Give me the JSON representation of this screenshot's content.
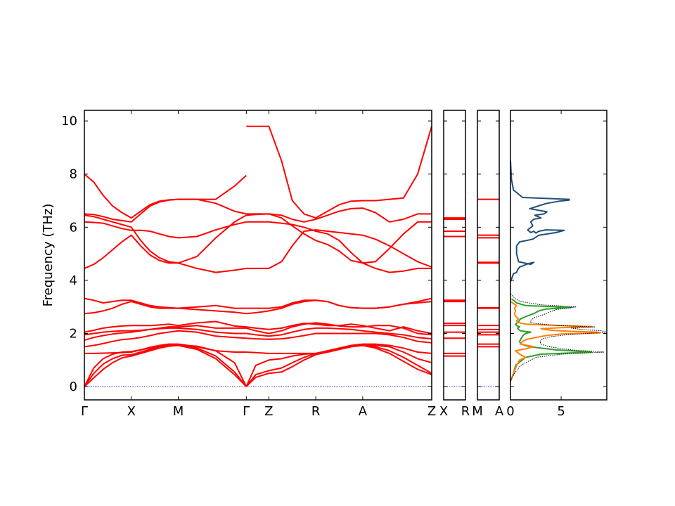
{
  "chart_data": {
    "type": "line",
    "ylabel": "Frequency (THz)",
    "ylim": [
      -0.5,
      10.4
    ],
    "yticks": [
      0,
      2,
      4,
      6,
      8,
      10
    ],
    "band_color": "#ff0000",
    "zero_line_color": "#0000cc",
    "panels": [
      {
        "name": "main",
        "x_range": [
          0,
          7.4
        ],
        "ticks": [
          {
            "x": 0,
            "label": "Γ"
          },
          {
            "x": 1.0,
            "label": "X"
          },
          {
            "x": 2.0,
            "label": "M"
          },
          {
            "x": 3.45,
            "label": "Γ"
          },
          {
            "x": 3.93,
            "label": "Z"
          },
          {
            "x": 4.93,
            "label": "R"
          },
          {
            "x": 5.93,
            "label": "A"
          },
          {
            "x": 7.4,
            "label": "Z"
          }
        ],
        "segments": [
          {
            "x_start": 0,
            "x_end": 3.45,
            "x": [
              0,
              0.2,
              0.4,
              0.6,
              0.8,
              1.0,
              1.2,
              1.4,
              1.6,
              1.8,
              2.0,
              2.4,
              2.8,
              3.2,
              3.45
            ],
            "bands": [
              [
                0,
                0.33,
                0.65,
                0.9,
                1.08,
                1.15,
                1.25,
                1.35,
                1.45,
                1.52,
                1.55,
                1.4,
                1.05,
                0.45,
                0
              ],
              [
                0,
                0.5,
                0.85,
                1.05,
                1.18,
                1.2,
                1.3,
                1.4,
                1.5,
                1.55,
                1.55,
                1.45,
                1.15,
                0.55,
                0
              ],
              [
                0,
                0.7,
                1.05,
                1.22,
                1.3,
                1.32,
                1.38,
                1.45,
                1.52,
                1.55,
                1.57,
                1.52,
                1.35,
                0.9,
                0
              ],
              [
                1.25,
                1.25,
                1.26,
                1.27,
                1.28,
                1.3,
                1.38,
                1.48,
                1.55,
                1.6,
                1.6,
                1.5,
                1.35,
                1.3,
                1.3
              ],
              [
                1.5,
                1.55,
                1.62,
                1.7,
                1.77,
                1.8,
                1.85,
                1.92,
                2.0,
                2.05,
                2.1,
                2.05,
                1.9,
                1.85,
                1.82
              ],
              [
                1.75,
                1.85,
                1.92,
                1.98,
                2.02,
                2.05,
                2.1,
                2.15,
                2.18,
                2.2,
                2.2,
                2.15,
                2.05,
                2.0,
                2.0
              ],
              [
                1.95,
                2.0,
                2.05,
                2.08,
                2.1,
                2.1,
                2.12,
                2.15,
                2.2,
                2.25,
                2.25,
                2.3,
                2.2,
                2.2,
                2.2
              ],
              [
                2.05,
                2.12,
                2.2,
                2.25,
                2.28,
                2.3,
                2.3,
                2.3,
                2.32,
                2.35,
                2.3,
                2.4,
                2.45,
                2.28,
                2.25
              ],
              [
                2.75,
                2.78,
                2.85,
                2.95,
                3.1,
                3.2,
                3.1,
                3.0,
                2.95,
                2.95,
                2.95,
                2.9,
                2.85,
                2.8,
                2.75
              ],
              [
                3.32,
                3.25,
                3.15,
                3.2,
                3.25,
                3.25,
                3.15,
                3.05,
                3.0,
                2.97,
                2.95,
                3.0,
                3.05,
                2.95,
                2.95
              ],
              [
                4.45,
                4.6,
                4.85,
                5.15,
                5.45,
                5.7,
                5.3,
                4.95,
                4.75,
                4.65,
                4.65,
                4.45,
                4.3,
                4.38,
                4.45
              ],
              [
                6.2,
                6.18,
                6.15,
                6.05,
                5.95,
                5.88,
                5.88,
                5.85,
                5.75,
                5.65,
                5.6,
                5.65,
                5.9,
                6.1,
                6.2
              ],
              [
                6.45,
                6.4,
                6.3,
                6.2,
                6.1,
                6.0,
                5.5,
                5.1,
                4.85,
                4.7,
                4.65,
                4.9,
                5.6,
                6.2,
                6.45
              ],
              [
                6.5,
                6.48,
                6.4,
                6.3,
                6.25,
                6.2,
                6.5,
                6.8,
                6.95,
                7.02,
                7.05,
                7.05,
                6.9,
                6.6,
                6.5
              ],
              [
                8.0,
                7.7,
                7.2,
                6.8,
                6.55,
                6.35,
                6.6,
                6.85,
                6.98,
                7.03,
                7.05,
                7.05,
                7.05,
                7.55,
                7.95
              ]
            ]
          },
          {
            "x_start": 3.45,
            "x_end": 7.4,
            "x": [
              3.45,
              3.65,
              3.93,
              4.2,
              4.43,
              4.68,
              4.93,
              5.18,
              5.43,
              5.68,
              5.93,
              6.2,
              6.5,
              6.8,
              7.1,
              7.4
            ],
            "bands": [
              [
                0,
                0.35,
                0.5,
                0.55,
                0.75,
                1.0,
                1.2,
                1.3,
                1.4,
                1.5,
                1.55,
                1.45,
                1.25,
                0.95,
                0.65,
                0.45
              ],
              [
                0,
                0.45,
                0.6,
                0.7,
                0.9,
                1.1,
                1.25,
                1.35,
                1.45,
                1.52,
                1.55,
                1.5,
                1.35,
                1.1,
                0.8,
                0.5
              ],
              [
                0,
                0.8,
                1.0,
                1.05,
                1.15,
                1.22,
                1.25,
                1.3,
                1.4,
                1.5,
                1.55,
                1.55,
                1.5,
                1.3,
                1.05,
                0.9
              ],
              [
                1.3,
                1.28,
                1.25,
                1.25,
                1.25,
                1.25,
                1.25,
                1.3,
                1.45,
                1.55,
                1.6,
                1.6,
                1.55,
                1.45,
                1.3,
                1.25
              ],
              [
                1.82,
                1.8,
                1.78,
                1.8,
                1.85,
                1.92,
                2.0,
                2.0,
                2.0,
                2.0,
                2.0,
                2.0,
                1.95,
                1.85,
                1.7,
                1.65
              ],
              [
                2.0,
                1.95,
                1.9,
                1.95,
                2.05,
                2.15,
                2.2,
                2.2,
                2.18,
                2.15,
                2.1,
                2.05,
                2.0,
                1.95,
                1.85,
                1.8
              ],
              [
                2.2,
                2.1,
                2.0,
                2.1,
                2.25,
                2.35,
                2.4,
                2.35,
                2.28,
                2.25,
                2.25,
                2.3,
                2.3,
                2.2,
                2.0,
                1.95
              ],
              [
                2.25,
                2.2,
                2.15,
                2.2,
                2.3,
                2.38,
                2.35,
                2.3,
                2.3,
                2.35,
                2.3,
                2.2,
                2.1,
                2.25,
                2.1,
                2.0
              ],
              [
                2.75,
                2.78,
                2.85,
                2.95,
                3.1,
                3.2,
                3.25,
                3.2,
                3.05,
                2.97,
                2.95,
                2.95,
                3.0,
                3.1,
                3.15,
                3.2
              ],
              [
                2.95,
                2.95,
                2.95,
                3.0,
                3.15,
                3.25,
                3.25,
                3.2,
                3.05,
                2.97,
                2.95,
                2.95,
                3.0,
                3.1,
                3.2,
                3.32
              ],
              [
                4.45,
                4.45,
                4.45,
                4.7,
                5.3,
                5.85,
                5.9,
                5.85,
                5.8,
                5.75,
                5.7,
                5.55,
                5.3,
                5.0,
                4.7,
                4.5
              ],
              [
                6.2,
                6.2,
                6.2,
                6.15,
                6.1,
                6.0,
                5.85,
                5.75,
                5.5,
                5.05,
                4.65,
                4.7,
                5.2,
                5.75,
                6.2,
                6.2
              ],
              [
                6.45,
                6.48,
                6.5,
                6.35,
                6.05,
                5.75,
                5.5,
                5.35,
                5.1,
                4.75,
                4.65,
                4.45,
                4.3,
                4.35,
                4.45,
                4.45
              ],
              [
                6.5,
                6.5,
                6.5,
                6.45,
                6.3,
                6.2,
                6.3,
                6.45,
                6.6,
                6.7,
                6.72,
                6.55,
                6.2,
                6.3,
                6.5,
                6.5
              ],
              [
                9.8,
                9.8,
                9.8,
                8.5,
                7.0,
                6.5,
                6.35,
                6.6,
                6.85,
                6.98,
                7.0,
                7.0,
                7.05,
                7.1,
                8.0,
                9.8
              ]
            ]
          }
        ]
      },
      {
        "name": "X-R",
        "ticks": [
          {
            "x": 0,
            "label": "X"
          },
          {
            "x": 1,
            "label": "R"
          }
        ],
        "flat_bands": [
          1.15,
          1.25,
          1.82,
          2.05,
          2.3,
          2.38,
          3.2,
          3.25,
          5.65,
          5.85,
          6.3,
          6.35
        ]
      },
      {
        "name": "M-A",
        "ticks": [
          {
            "x": 0,
            "label": "M"
          },
          {
            "x": 1,
            "label": "A"
          }
        ],
        "flat_bands": [
          1.5,
          1.6,
          1.95,
          2.05,
          2.15,
          2.3,
          2.95,
          2.97,
          4.65,
          4.68,
          5.6,
          5.7,
          7.05
        ]
      },
      {
        "name": "DOS",
        "xlim": [
          0,
          9.5
        ],
        "xticks": [
          0,
          5
        ],
        "series": [
          {
            "color": "#1f4e79",
            "y": [
              3.95,
              4.25,
              4.3,
              4.4,
              4.5,
              4.62,
              4.68,
              4.6,
              4.7,
              5.0,
              5.3,
              5.45,
              5.5,
              5.55,
              5.7,
              5.8,
              5.88,
              5.9,
              5.85,
              5.78,
              5.85,
              5.8,
              5.9,
              6.05,
              6.2,
              6.3,
              6.35,
              6.45,
              6.5,
              6.58,
              6.7,
              6.9,
              6.98,
              7.02,
              7.05,
              7.12,
              7.4,
              7.8,
              8.5
            ],
            "v": [
              0,
              0.3,
              0.6,
              0.7,
              0.9,
              1.7,
              2.3,
              2.0,
              0.8,
              0.6,
              0.6,
              0.9,
              1.6,
              2.2,
              2.8,
              4.5,
              5.3,
              3.5,
              2.8,
              2.5,
              2.3,
              2.0,
              1.7,
              2.2,
              2.0,
              2.3,
              3.0,
              2.4,
              3.3,
              3.6,
              1.9,
              3.6,
              4.8,
              5.8,
              5.8,
              1.2,
              0.3,
              0.1,
              0
            ]
          },
          {
            "color": "#2ca02c",
            "y": [
              0.2,
              0.5,
              0.8,
              1.1,
              1.22,
              1.3,
              1.38,
              1.45,
              1.5,
              1.55,
              1.62,
              1.7,
              1.78,
              1.85,
              1.95,
              2.0,
              2.05,
              2.1,
              2.15,
              2.2,
              2.25,
              2.3,
              2.35,
              2.45,
              2.55,
              2.62,
              2.68,
              2.75,
              2.85,
              2.92,
              2.98,
              3.05,
              3.15,
              3.25,
              3.3
            ],
            "v": [
              0,
              0.3,
              0.5,
              1.5,
              3.0,
              8.0,
              4.5,
              3.0,
              2.0,
              1.4,
              1.0,
              0.9,
              1.0,
              1.1,
              1.3,
              1.5,
              2.0,
              1.0,
              0.8,
              0.7,
              0.9,
              0.6,
              0.5,
              0.8,
              1.0,
              1.4,
              1.8,
              2.3,
              2.8,
              3.5,
              6.0,
              1.5,
              0.6,
              0.3,
              0.1
            ]
          },
          {
            "color": "#ff7f0e",
            "y": [
              0.2,
              0.5,
              0.8,
              1.0,
              1.1,
              1.2,
              1.28,
              1.35,
              1.42,
              1.5,
              1.6,
              1.7,
              1.78,
              1.85,
              1.92,
              1.98,
              2.02,
              2.05,
              2.08,
              2.12,
              2.18,
              2.22,
              2.26,
              2.35,
              2.42,
              2.48,
              2.55,
              2.65,
              2.75,
              2.85,
              2.95,
              3.05,
              3.2
            ],
            "v": [
              0,
              0.3,
              0.6,
              0.9,
              1.5,
              1.0,
              0.7,
              0.5,
              1.5,
              2.3,
              1.0,
              1.2,
              1.6,
              2.5,
              3.5,
              5.0,
              8.8,
              8.5,
              6.0,
              4.0,
              3.0,
              5.0,
              8.0,
              1.5,
              0.7,
              0.6,
              0.8,
              0.5,
              0.4,
              0.5,
              0.4,
              0.6,
              0
            ]
          },
          {
            "color": "#000000",
            "dotted": true,
            "y": [
              0.2,
              0.5,
              0.8,
              1.1,
              1.22,
              1.3,
              1.38,
              1.5,
              1.6,
              1.7,
              1.8,
              1.88,
              1.95,
              2.0,
              2.05,
              2.1,
              2.15,
              2.2,
              2.25,
              2.3,
              2.4,
              2.5,
              2.6,
              2.7,
              2.8,
              2.9,
              3.0,
              3.08,
              3.2,
              3.3,
              3.5
            ],
            "v": [
              0,
              0.4,
              1.0,
              2.5,
              5.0,
              9.2,
              6.0,
              3.8,
              3.0,
              2.9,
              3.2,
              4.0,
              5.5,
              7.5,
              9.5,
              9.0,
              7.0,
              6.0,
              8.3,
              4.5,
              2.0,
              2.0,
              2.4,
              3.2,
              3.8,
              4.5,
              6.5,
              3.0,
              1.0,
              0.5,
              0
            ]
          }
        ]
      }
    ]
  }
}
